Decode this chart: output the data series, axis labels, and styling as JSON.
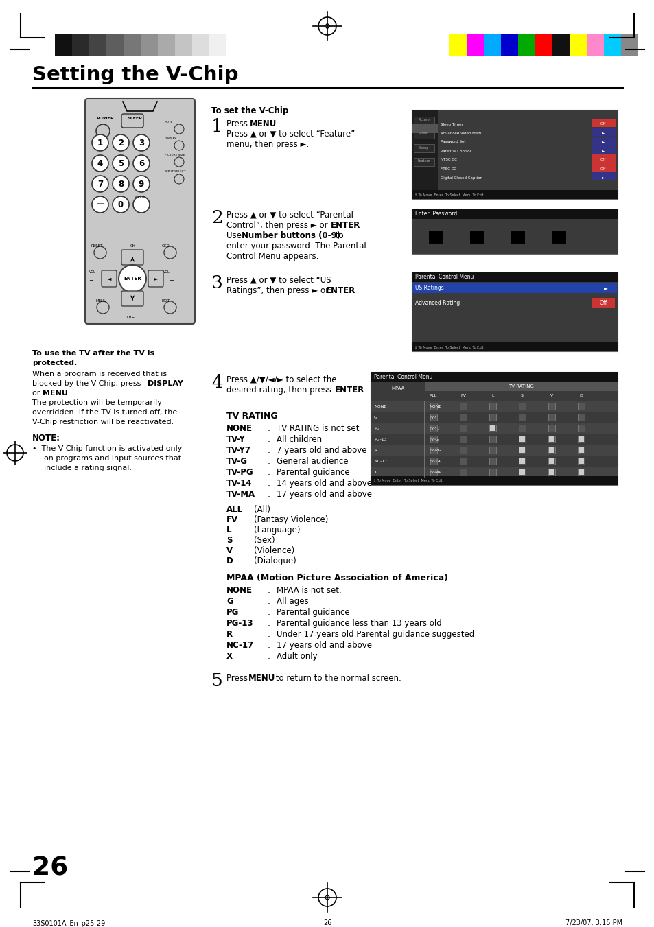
{
  "title": "Setting the V-Chip",
  "page_number": "26",
  "footer_left": "33S0101A_En_p25-29",
  "footer_center": "26",
  "footer_right": "7/23/07, 3:15 PM",
  "bg_color": "#ffffff",
  "color_bars_left": [
    "#111111",
    "#2a2a2a",
    "#444444",
    "#5e5e5e",
    "#777777",
    "#919191",
    "#aaaaaa",
    "#c4c4c4",
    "#dddddd",
    "#f0f0f0",
    "#ffffff"
  ],
  "color_bars_right": [
    "#ffff00",
    "#ff00ff",
    "#00aaff",
    "#0000cc",
    "#00aa00",
    "#ff0000",
    "#111111",
    "#ffff00",
    "#ff88cc",
    "#00ccff",
    "#888888"
  ]
}
